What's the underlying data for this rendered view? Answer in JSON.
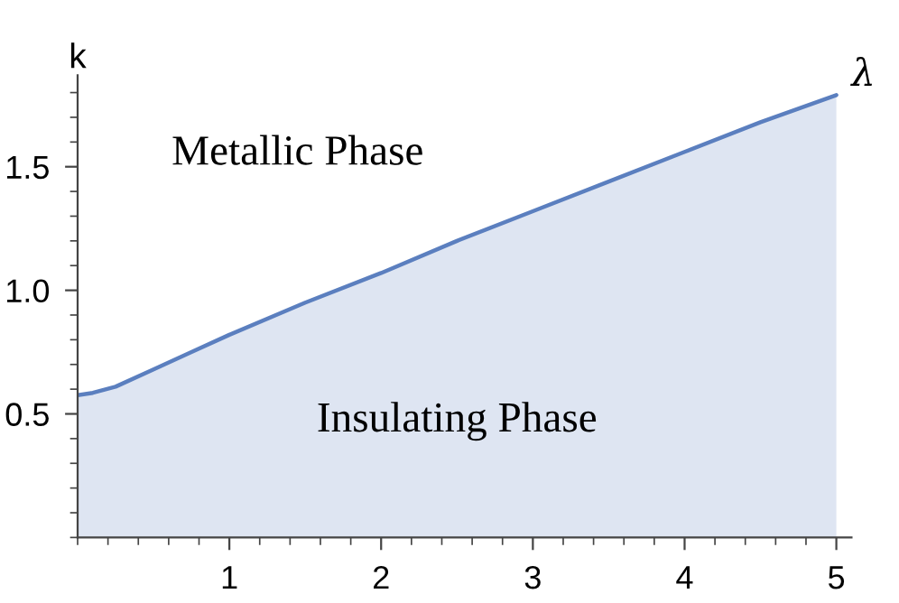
{
  "chart_data": {
    "type": "area",
    "xlabel": "λ",
    "ylabel": "k",
    "x": [
      0,
      0.1,
      0.25,
      0.5,
      0.75,
      1,
      1.5,
      2,
      2.5,
      3,
      3.5,
      4,
      4.5,
      5
    ],
    "series": [
      {
        "color": "#5b7fbf",
        "values": [
          0.576,
          0.585,
          0.61,
          0.68,
          0.75,
          0.82,
          0.95,
          1.07,
          1.2,
          1.32,
          1.44,
          1.56,
          1.68,
          1.79
        ]
      }
    ],
    "xlim": [
      0,
      5.1
    ],
    "ylim": [
      0,
      1.87
    ],
    "xticks": [
      1,
      2,
      3,
      4,
      5
    ],
    "yticks": [
      0.5,
      {
        "value": 1.0,
        "label": "1.0"
      },
      1.5
    ],
    "annotations": [
      "Metallic Phase",
      "Insulating Phase"
    ],
    "grid": false,
    "legend": false
  }
}
